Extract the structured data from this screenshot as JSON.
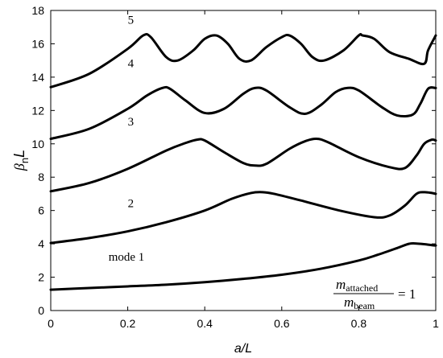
{
  "chart_data": {
    "type": "line",
    "xlabel": "a/L",
    "ylabel_main": "β",
    "ylabel_sub": "n",
    "ylabel_tail": "L",
    "xlim": [
      0,
      1
    ],
    "ylim": [
      0,
      18
    ],
    "x_ticks": [
      0,
      0.2,
      0.4,
      0.6,
      0.8,
      1
    ],
    "x_tick_labels": [
      "0",
      "0.2",
      "0.4",
      "0.6",
      "0.8",
      "1"
    ],
    "y_ticks": [
      0,
      2,
      4,
      6,
      8,
      10,
      12,
      14,
      16,
      18
    ],
    "y_tick_labels": [
      "0",
      "2",
      "4",
      "6",
      "8",
      "10",
      "12",
      "14",
      "16",
      "18"
    ],
    "grid": false,
    "series": [
      {
        "name": "mode 1",
        "x": [
          0,
          0.1,
          0.2,
          0.3,
          0.4,
          0.5,
          0.6,
          0.7,
          0.8,
          0.85,
          0.9,
          0.93,
          0.95,
          0.97,
          0.99,
          1.0
        ],
        "y": [
          1.25,
          1.35,
          1.45,
          1.55,
          1.7,
          1.9,
          2.15,
          2.5,
          3.0,
          3.35,
          3.75,
          4.0,
          4.02,
          3.98,
          3.92,
          3.9
        ]
      },
      {
        "name": "2",
        "x": [
          0,
          0.1,
          0.2,
          0.3,
          0.4,
          0.47,
          0.52,
          0.55,
          0.58,
          0.65,
          0.75,
          0.84,
          0.88,
          0.92,
          0.95,
          0.97,
          0.99,
          1.0
        ],
        "y": [
          4.05,
          4.35,
          4.75,
          5.3,
          6.0,
          6.7,
          7.05,
          7.1,
          7.0,
          6.6,
          6.0,
          5.6,
          5.7,
          6.3,
          7.0,
          7.1,
          7.05,
          7.0
        ]
      },
      {
        "name": "3",
        "x": [
          0,
          0.1,
          0.2,
          0.3,
          0.35,
          0.38,
          0.4,
          0.45,
          0.5,
          0.53,
          0.56,
          0.62,
          0.66,
          0.69,
          0.72,
          0.8,
          0.88,
          0.92,
          0.95,
          0.97,
          0.99,
          1.0
        ],
        "y": [
          7.15,
          7.65,
          8.5,
          9.6,
          10.05,
          10.25,
          10.2,
          9.5,
          8.85,
          8.7,
          8.8,
          9.7,
          10.15,
          10.3,
          10.1,
          9.2,
          8.6,
          8.55,
          9.3,
          10.0,
          10.25,
          10.2
        ]
      },
      {
        "name": "4",
        "x": [
          0,
          0.1,
          0.2,
          0.25,
          0.29,
          0.31,
          0.35,
          0.4,
          0.45,
          0.5,
          0.53,
          0.56,
          0.62,
          0.66,
          0.7,
          0.74,
          0.77,
          0.8,
          0.86,
          0.9,
          0.94,
          0.96,
          0.98,
          1.0
        ],
        "y": [
          10.3,
          10.9,
          12.1,
          12.9,
          13.35,
          13.3,
          12.6,
          11.85,
          12.1,
          13.0,
          13.35,
          13.2,
          12.2,
          11.8,
          12.3,
          13.1,
          13.35,
          13.2,
          12.2,
          11.7,
          11.75,
          12.4,
          13.3,
          13.35
        ]
      },
      {
        "name": "5",
        "x": [
          0,
          0.1,
          0.2,
          0.24,
          0.26,
          0.3,
          0.33,
          0.37,
          0.4,
          0.43,
          0.46,
          0.49,
          0.52,
          0.56,
          0.6,
          0.62,
          0.65,
          0.68,
          0.71,
          0.76,
          0.8,
          0.81,
          0.84,
          0.88,
          0.93,
          0.97,
          0.98,
          1.0
        ],
        "y": [
          13.4,
          14.2,
          15.7,
          16.5,
          16.4,
          15.2,
          15.0,
          15.6,
          16.3,
          16.5,
          16.0,
          15.1,
          15.0,
          15.8,
          16.4,
          16.5,
          16.0,
          15.2,
          15.0,
          15.6,
          16.5,
          16.5,
          16.3,
          15.5,
          15.1,
          14.8,
          15.6,
          16.5
        ]
      }
    ],
    "annotations": [
      {
        "text": "5",
        "x": 0.2,
        "y": 17.2
      },
      {
        "text": "4",
        "x": 0.2,
        "y": 14.6
      },
      {
        "text": "3",
        "x": 0.2,
        "y": 11.1
      },
      {
        "text": "2",
        "x": 0.2,
        "y": 6.2
      },
      {
        "text": "mode 1",
        "x": 0.15,
        "y": 3.0
      }
    ],
    "ratio_numerator": "m",
    "ratio_numerator_sub": "attached",
    "ratio_denominator": "m",
    "ratio_denominator_sub": "beam",
    "ratio_value": "= 1"
  }
}
